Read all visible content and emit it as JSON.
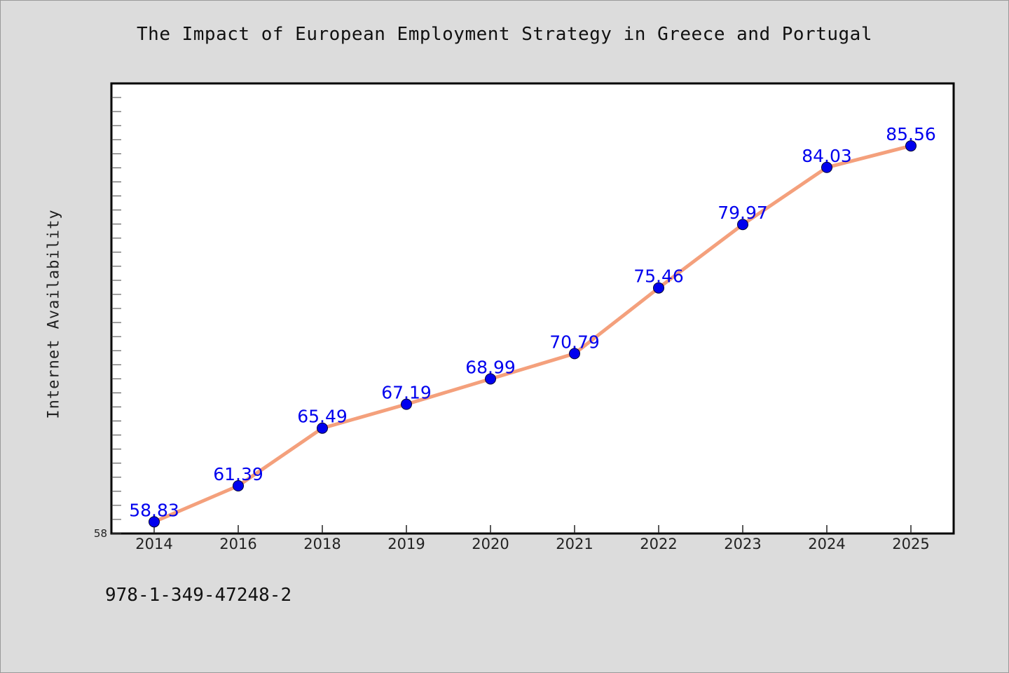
{
  "page": {
    "footnote": "978-1-349-47248-2"
  },
  "chart_data": {
    "type": "line",
    "title": "The Impact of European Employment Strategy in Greece and Portugal",
    "xlabel": "",
    "ylabel": "Internet Availability",
    "categories": [
      "2014",
      "2016",
      "2018",
      "2019",
      "2020",
      "2021",
      "2022",
      "2023",
      "2024",
      "2025"
    ],
    "series": [
      {
        "values": [
          58.83,
          61.39,
          65.49,
          67.19,
          68.99,
          70.79,
          75.46,
          79.97,
          84.03,
          85.56
        ]
      }
    ],
    "data_labels": [
      "58.83",
      "61.39",
      "65.49",
      "67.19",
      "68.99",
      "70.79",
      "75.46",
      "79.97",
      "84.03",
      "85.56"
    ],
    "ylim": [
      58,
      90
    ],
    "y_tick_label": "58",
    "grid": false,
    "legend": "none",
    "colors": {
      "line": "#f4a07c",
      "marker": "#0000ee",
      "data_label": "#0000ee",
      "plot_background": "#ffffff",
      "figure_background": "#dcdcdc"
    }
  }
}
